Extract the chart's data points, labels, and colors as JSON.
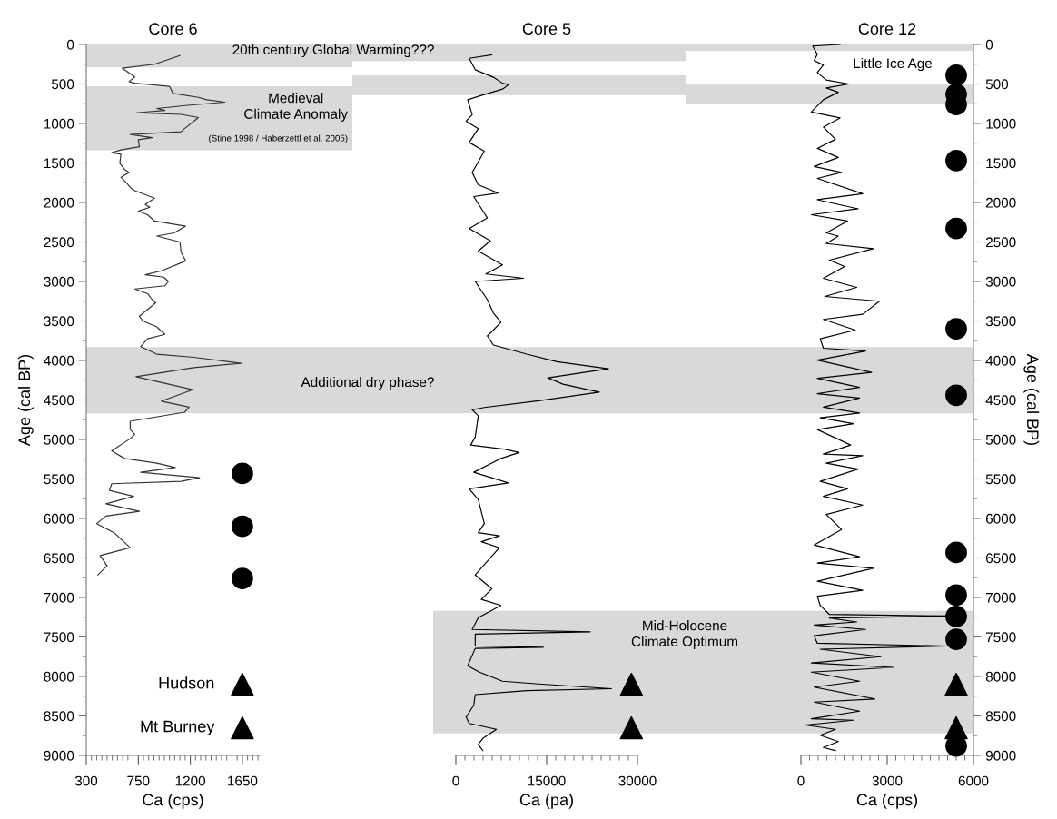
{
  "chart_data": [
    {
      "type": "line",
      "title": "Core 6",
      "xlabel": "Ca (cps)",
      "ylabel": "Age (cal BP)",
      "xlim": [
        300,
        1800
      ],
      "xticks": [
        300,
        750,
        1200,
        1650
      ],
      "ylim": [
        9000,
        0
      ],
      "yticks": [
        0,
        500,
        1000,
        1500,
        2000,
        2500,
        3000,
        3500,
        4000,
        4500,
        5000,
        5500,
        6000,
        6500,
        7000,
        7500,
        8000,
        8500,
        9000
      ],
      "series": [
        {
          "color": "#333333",
          "x": [
            1110,
            890,
            610,
            720,
            670,
            720,
            1020,
            1050,
            1270,
            1340,
            1500,
            1180,
            910,
            980,
            730,
            1120,
            1270,
            1150,
            1120,
            680,
            870,
            750,
            760,
            600,
            520,
            600,
            590,
            630,
            670,
            600,
            650,
            680,
            720,
            890,
            810,
            850,
            750,
            830,
            890,
            1160,
            1060,
            910,
            1110,
            1120,
            1160,
            950,
            810,
            970,
            1010,
            980,
            720,
            830,
            870,
            900,
            760,
            790,
            910,
            980,
            830,
            770,
            910,
            1230,
            1640,
            1230,
            730,
            1220,
            950,
            1190,
            1150,
            680,
            680,
            720,
            680,
            520,
            630,
            910,
            1070,
            770,
            1280,
            1120,
            520,
            500,
            710,
            470,
            760,
            470,
            390,
            540,
            680,
            420,
            480,
            400
          ],
          "values": [
            140,
            250,
            300,
            410,
            470,
            490,
            530,
            620,
            670,
            700,
            730,
            770,
            810,
            835,
            865,
            885,
            925,
            1065,
            1105,
            1140,
            1180,
            1205,
            1295,
            1335,
            1370,
            1390,
            1505,
            1580,
            1620,
            1680,
            1755,
            1810,
            1850,
            1945,
            2025,
            2060,
            2110,
            2155,
            2235,
            2300,
            2385,
            2425,
            2500,
            2630,
            2740,
            2865,
            2915,
            2945,
            3000,
            3055,
            3095,
            3155,
            3230,
            3270,
            3440,
            3500,
            3575,
            3670,
            3725,
            3825,
            3920,
            3960,
            4035,
            4090,
            4205,
            4370,
            4515,
            4590,
            4655,
            4770,
            4875,
            4935,
            4990,
            5145,
            5240,
            5300,
            5355,
            5415,
            5485,
            5530,
            5560,
            5645,
            5720,
            5815,
            5910,
            5970,
            6065,
            6180,
            6370,
            6470,
            6600,
            6715
          ]
        },
        {
          "type": "scatter",
          "marker": "circle",
          "color": "#000000",
          "x": [
            1650,
            1650,
            1650
          ],
          "values": [
            5430,
            6100,
            6760
          ]
        },
        {
          "type": "scatter",
          "marker": "triangle",
          "color": "#000000",
          "x": [
            1650,
            1650
          ],
          "values": [
            8100,
            8650
          ]
        }
      ],
      "bands": [
        {
          "axis": "y",
          "from": 0,
          "to": 290,
          "label": "20th century Global Warming???",
          "color": "#d9d9d9"
        },
        {
          "axis": "y",
          "from": 530,
          "to": 1340,
          "label": "Medieval\nClimate Anomaly",
          "color": "#d9d9d9"
        },
        {
          "axis": "y",
          "from": 3830,
          "to": 4670,
          "label": "Additional dry phase?",
          "color": "#d9d9d9"
        }
      ],
      "annotations": [
        "(Stine 1998 / Haberzettl et al. 2005)",
        {
          "text": "Hudson",
          "x": 1650,
          "y": 8100
        },
        {
          "text": "Mt Burney",
          "x": 1650,
          "y": 8650
        }
      ]
    },
    {
      "type": "line",
      "title": "Core 5",
      "xlabel": "Ca (pa)",
      "tick_labels": "x",
      "xlim": [
        0,
        30000
      ],
      "xticks": [
        0,
        15000,
        30000
      ],
      "ylim": [
        9000,
        0
      ],
      "series": [
        {
          "color": "#000000",
          "x": [
            5950,
            2200,
            3200,
            6200,
            7700,
            8700,
            7700,
            4200,
            1950,
            2700,
            1700,
            3700,
            2200,
            4700,
            2700,
            3700,
            6950,
            2950,
            5200,
            2200,
            5700,
            3700,
            7700,
            4950,
            11200,
            3200,
            5200,
            6200,
            7450,
            6200,
            5200,
            6200,
            11700,
            16700,
            25200,
            15200,
            17700,
            23700,
            13700,
            4700,
            2700,
            3700,
            3200,
            2450,
            8200,
            10450,
            7450,
            2950,
            8700,
            2200,
            3700,
            4700,
            3700,
            7200,
            4200,
            7200,
            3200,
            5950,
            4200,
            7450,
            3700,
            2700,
            22200,
            3200,
            3200,
            14450,
            3200,
            1950,
            3900,
            7700,
            13700,
            25700,
            11700,
            3200,
            2950,
            1700,
            2200,
            6700,
            4450,
            3700,
            4450
          ],
          "values": [
            130,
            175,
            320,
            415,
            490,
            510,
            565,
            645,
            700,
            890,
            970,
            1065,
            1240,
            1350,
            1620,
            1775,
            1880,
            1925,
            2195,
            2330,
            2485,
            2615,
            2790,
            2905,
            2960,
            3000,
            3230,
            3400,
            3515,
            3615,
            3690,
            3805,
            3920,
            4015,
            4105,
            4220,
            4300,
            4400,
            4510,
            4595,
            4625,
            4700,
            4970,
            5070,
            5125,
            5165,
            5240,
            5415,
            5550,
            5625,
            5760,
            6065,
            6180,
            6220,
            6295,
            6370,
            6715,
            6890,
            7025,
            7100,
            7255,
            7405,
            7435,
            7465,
            7615,
            7630,
            7645,
            7865,
            7945,
            8060,
            8095,
            8155,
            8180,
            8230,
            8365,
            8515,
            8595,
            8670,
            8785,
            8860,
            8940
          ]
        },
        {
          "type": "scatter",
          "marker": "triangle",
          "color": "#000000",
          "x": [
            29000,
            29000
          ],
          "values": [
            8100,
            8650
          ]
        }
      ],
      "bands": [
        {
          "axis": "y",
          "from": 0,
          "to": 210,
          "color": "#d9d9d9"
        },
        {
          "axis": "y",
          "from": 390,
          "to": 640,
          "color": "#d9d9d9"
        },
        {
          "axis": "y",
          "from": 3830,
          "to": 4670,
          "color": "#d9d9d9"
        },
        {
          "axis": "y",
          "from": 7170,
          "to": 8720,
          "label": "Mid-Holocene\nClimate Optimum",
          "color": "#d9d9d9"
        }
      ]
    },
    {
      "type": "line",
      "title": "Core 12",
      "xlabel": "Ca (cps)",
      "ylabel": "Age (cal BP)",
      "xlim": [
        0,
        6000
      ],
      "xticks": [
        0,
        3000,
        6000
      ],
      "ylim": [
        9000,
        0
      ],
      "yticks": [
        0,
        500,
        1000,
        1500,
        2000,
        2500,
        3000,
        3500,
        4000,
        4500,
        5000,
        5500,
        6000,
        6500,
        7000,
        7500,
        8000,
        8500,
        9000
      ],
      "series": [
        {
          "color": "#000000",
          "x": [
            1360,
            410,
            570,
            460,
            780,
            570,
            880,
            1670,
            880,
            1300,
            780,
            360,
            1360,
            780,
            1200,
            570,
            1300,
            460,
            1410,
            570,
            2150,
            570,
            1990,
            360,
            1620,
            880,
            1300,
            880,
            2520,
            990,
            1520,
            780,
            1940,
            830,
            2730,
            2150,
            780,
            1890,
            670,
            780,
            2250,
            570,
            2460,
            570,
            2040,
            570,
            2040,
            780,
            2040,
            670,
            1830,
            570,
            1730,
            780,
            2150,
            880,
            1990,
            670,
            1620,
            780,
            2150,
            880,
            1410,
            460,
            2040,
            570,
            2520,
            570,
            2150,
            570,
            670,
            990,
            5300,
            990,
            1940,
            460,
            2250,
            460,
            570,
            5090,
            670,
            2780,
            360,
            3200,
            360,
            2040,
            460,
            2570,
            460,
            2040,
            360,
            1830,
            150,
            1200,
            670,
            1300,
            780,
            1200
          ],
          "values": [
            0,
            20,
            125,
            205,
            260,
            355,
            450,
            500,
            550,
            605,
            700,
            855,
            930,
            1045,
            1200,
            1315,
            1430,
            1545,
            1620,
            1695,
            1890,
            1965,
            2080,
            2155,
            2235,
            2385,
            2425,
            2520,
            2585,
            2730,
            2810,
            2960,
            3075,
            3190,
            3250,
            3415,
            3480,
            3615,
            3725,
            3845,
            3880,
            3995,
            4150,
            4225,
            4340,
            4420,
            4475,
            4590,
            4665,
            4725,
            4800,
            4875,
            5070,
            5185,
            5205,
            5300,
            5375,
            5530,
            5625,
            5720,
            5830,
            5950,
            6140,
            6335,
            6485,
            6565,
            6630,
            6795,
            6910,
            6985,
            7100,
            7215,
            7235,
            7260,
            7310,
            7350,
            7405,
            7485,
            7580,
            7615,
            7655,
            7750,
            7830,
            7885,
            7945,
            8060,
            8135,
            8285,
            8325,
            8440,
            8535,
            8555,
            8615,
            8670,
            8745,
            8825,
            8900,
            8940
          ]
        },
        {
          "type": "scatter",
          "marker": "circle",
          "color": "#000000",
          "x": [
            5400,
            5400,
            5400,
            5400,
            5400,
            5400,
            5400,
            5400,
            5400,
            5400,
            5400,
            5400
          ],
          "values": [
            390,
            630,
            760,
            1470,
            2330,
            3600,
            4440,
            6430,
            6970,
            7240,
            7530,
            8880
          ]
        },
        {
          "type": "scatter",
          "marker": "triangle",
          "color": "#000000",
          "x": [
            5400,
            5400
          ],
          "values": [
            8100,
            8650
          ]
        }
      ],
      "bands": [
        {
          "axis": "y",
          "from": 0,
          "to": 80,
          "color": "#d9d9d9"
        },
        {
          "axis": "y",
          "from": 510,
          "to": 750,
          "color": "#d9d9d9"
        },
        {
          "axis": "y",
          "from": 3830,
          "to": 4670,
          "color": "#d9d9d9"
        },
        {
          "axis": "y",
          "from": 7170,
          "to": 8720,
          "color": "#d9d9d9"
        }
      ],
      "annotations": [
        "Little Ice Age"
      ]
    }
  ]
}
